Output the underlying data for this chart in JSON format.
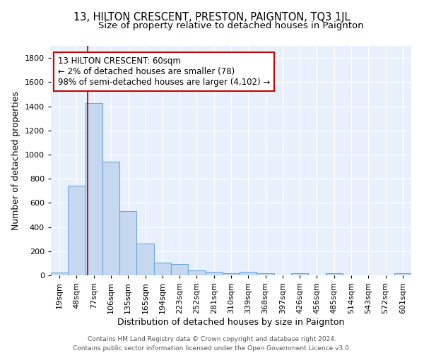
{
  "title": "13, HILTON CRESCENT, PRESTON, PAIGNTON, TQ3 1JL",
  "subtitle": "Size of property relative to detached houses in Paignton",
  "xlabel": "Distribution of detached houses by size in Paignton",
  "ylabel": "Number of detached properties",
  "categories": [
    "19sqm",
    "48sqm",
    "77sqm",
    "106sqm",
    "135sqm",
    "165sqm",
    "194sqm",
    "223sqm",
    "252sqm",
    "281sqm",
    "310sqm",
    "339sqm",
    "368sqm",
    "397sqm",
    "426sqm",
    "456sqm",
    "485sqm",
    "514sqm",
    "543sqm",
    "572sqm",
    "601sqm"
  ],
  "values": [
    25,
    745,
    1425,
    940,
    530,
    265,
    105,
    95,
    40,
    30,
    15,
    30,
    15,
    0,
    15,
    0,
    20,
    0,
    0,
    0,
    15
  ],
  "bar_color": "#c5d8f0",
  "bar_edge_color": "#6ea8d8",
  "bg_color": "#e8f0fb",
  "grid_color": "#ffffff",
  "red_line_x": 1.65,
  "annotation_text": "13 HILTON CRESCENT: 60sqm\n← 2% of detached houses are smaller (78)\n98% of semi-detached houses are larger (4,102) →",
  "annotation_box_color": "#cc0000",
  "ylim": [
    0,
    1900
  ],
  "yticks": [
    0,
    200,
    400,
    600,
    800,
    1000,
    1200,
    1400,
    1600,
    1800
  ],
  "footer_line1": "Contains HM Land Registry data © Crown copyright and database right 2024.",
  "footer_line2": "Contains public sector information licensed under the Open Government Licence v3.0.",
  "title_fontsize": 10.5,
  "subtitle_fontsize": 9.5,
  "axis_fontsize": 9,
  "tick_fontsize": 8,
  "annotation_fontsize": 8.5,
  "footer_fontsize": 6.5
}
